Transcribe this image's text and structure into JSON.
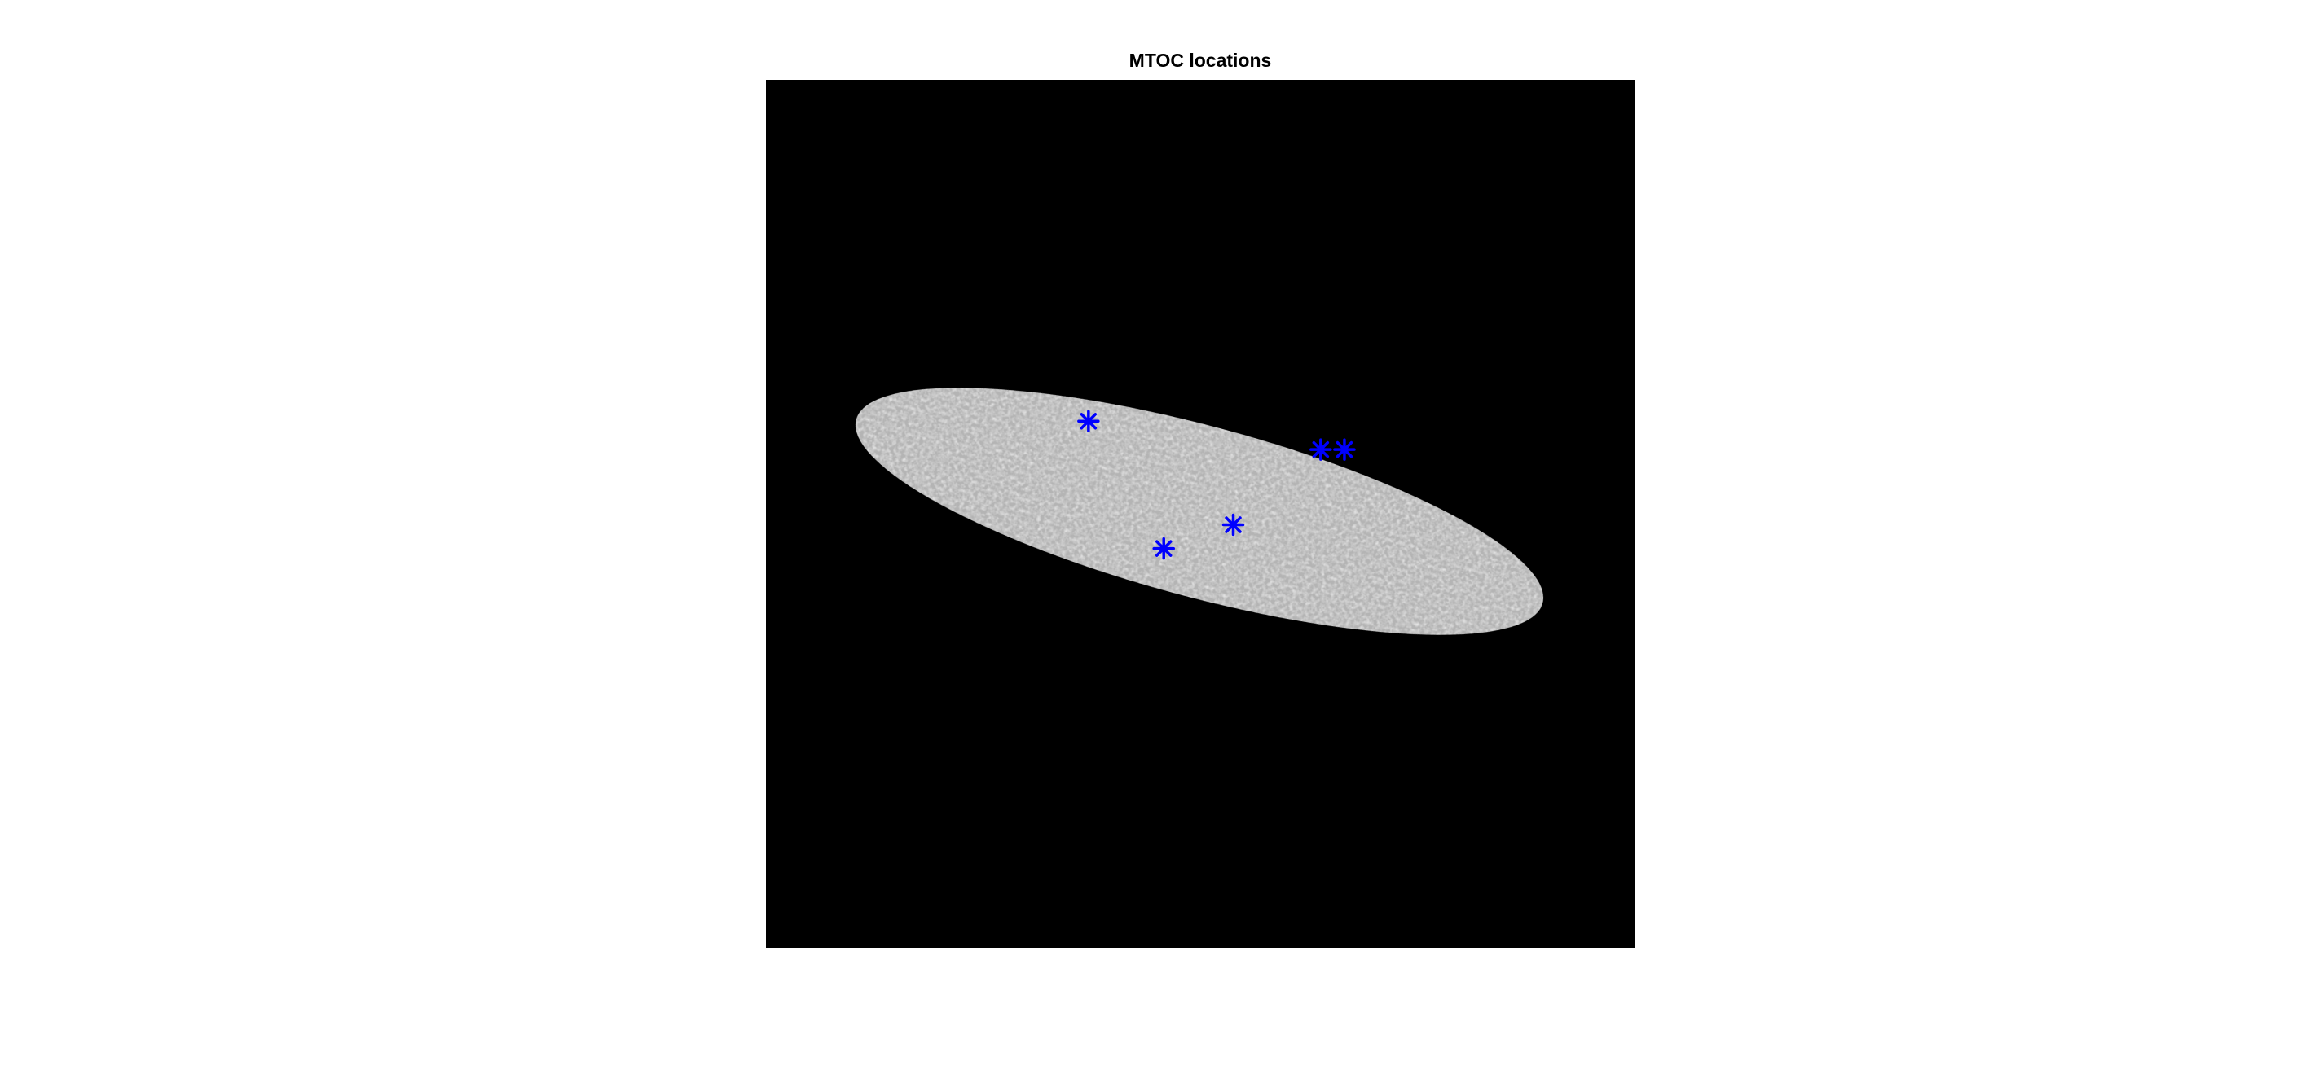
{
  "chart_data": {
    "type": "scatter",
    "title": "MTOC locations",
    "x": [
      56.2,
      96.3,
      100.4,
      81.2,
      69.2
    ],
    "series": [
      {
        "color": "#0000ff",
        "values": [
          59.5,
          64.4,
          64.4,
          77.4,
          81.5
        ]
      }
    ],
    "xlim": [
      0.5,
      150.5
    ],
    "ylim": [
      150.5,
      0.5
    ]
  }
}
